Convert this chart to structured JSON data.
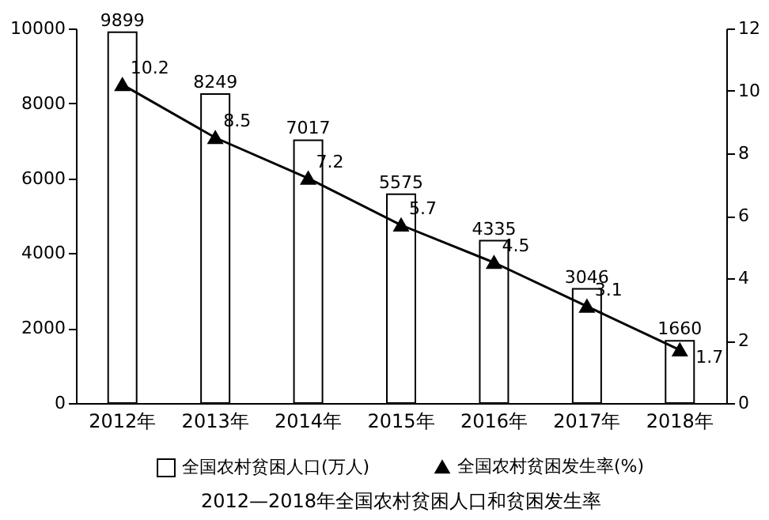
{
  "chart_data": {
    "type": "bar",
    "title": "2012—2018年全国农村贫困人口和贫困发生率",
    "categories": [
      "2012年",
      "2013年",
      "2014年",
      "2015年",
      "2016年",
      "2017年",
      "2018年"
    ],
    "series": [
      {
        "name": "全国农村贫困人口(万人)",
        "color": "#ffffff",
        "values": [
          9899,
          8249,
          7017,
          5575,
          4335,
          3046,
          1660
        ]
      },
      {
        "name": "全国农村贫困发生率(%)",
        "type": "line",
        "axis": "y2",
        "color": "#000000",
        "values": [
          10.2,
          8.5,
          7.2,
          5.7,
          4.5,
          3.1,
          1.7
        ]
      }
    ],
    "ylim": [
      0,
      10000
    ],
    "yticks": [
      0,
      2000,
      4000,
      6000,
      8000,
      10000
    ],
    "y2lim": [
      0,
      12
    ],
    "y2ticks": [
      0,
      2,
      4,
      6,
      8,
      10,
      12
    ],
    "data_labels": true,
    "legend": "bottom",
    "marker": "triangle"
  }
}
